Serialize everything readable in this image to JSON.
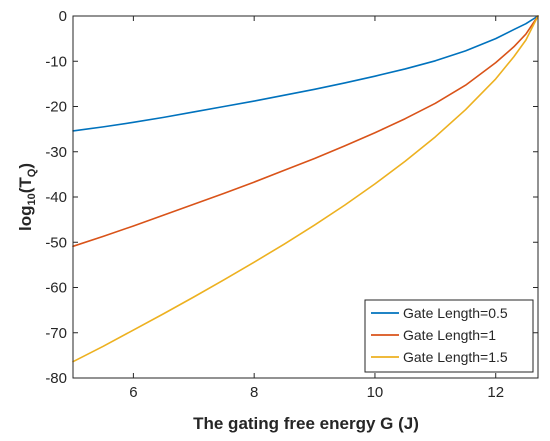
{
  "chart_data": {
    "type": "line",
    "xlabel": "The gating free energy G (J)",
    "ylabel_main": "log",
    "ylabel_sub": "10",
    "ylabel_paren_open": "(T",
    "ylabel_sub2": "Q",
    "ylabel_paren_close": ")",
    "xlim": [
      5,
      12.7
    ],
    "ylim": [
      -80,
      0
    ],
    "xticks": [
      6,
      8,
      10,
      12
    ],
    "yticks": [
      0,
      -10,
      -20,
      -30,
      -40,
      -50,
      -60,
      -70,
      -80
    ],
    "legend_position": "bottom-right",
    "colors": {
      "axis": "#262626"
    },
    "x": [
      5.0,
      5.5,
      6.0,
      6.5,
      7.0,
      7.5,
      8.0,
      8.5,
      9.0,
      9.5,
      10.0,
      10.5,
      11.0,
      11.5,
      12.0,
      12.3,
      12.5,
      12.7
    ],
    "series": [
      {
        "name": "Gate Length=0.5",
        "color": "#0072BD",
        "values": [
          -25.4,
          -24.5,
          -23.5,
          -22.4,
          -21.2,
          -20.0,
          -18.8,
          -17.5,
          -16.2,
          -14.8,
          -13.3,
          -11.7,
          -9.9,
          -7.7,
          -5.0,
          -3.0,
          -1.7,
          0
        ]
      },
      {
        "name": "Gate Length=1",
        "color": "#D95319",
        "values": [
          -50.9,
          -48.7,
          -46.4,
          -44.0,
          -41.6,
          -39.2,
          -36.7,
          -34.1,
          -31.5,
          -28.7,
          -25.8,
          -22.7,
          -19.3,
          -15.3,
          -10.3,
          -6.8,
          -4.0,
          0
        ]
      },
      {
        "name": "Gate Length=1.5",
        "color": "#EDB120",
        "values": [
          -76.4,
          -73.0,
          -69.4,
          -65.8,
          -62.1,
          -58.3,
          -54.4,
          -50.4,
          -46.2,
          -41.8,
          -37.1,
          -32.1,
          -26.7,
          -20.7,
          -13.9,
          -9.0,
          -5.3,
          0
        ]
      }
    ]
  }
}
